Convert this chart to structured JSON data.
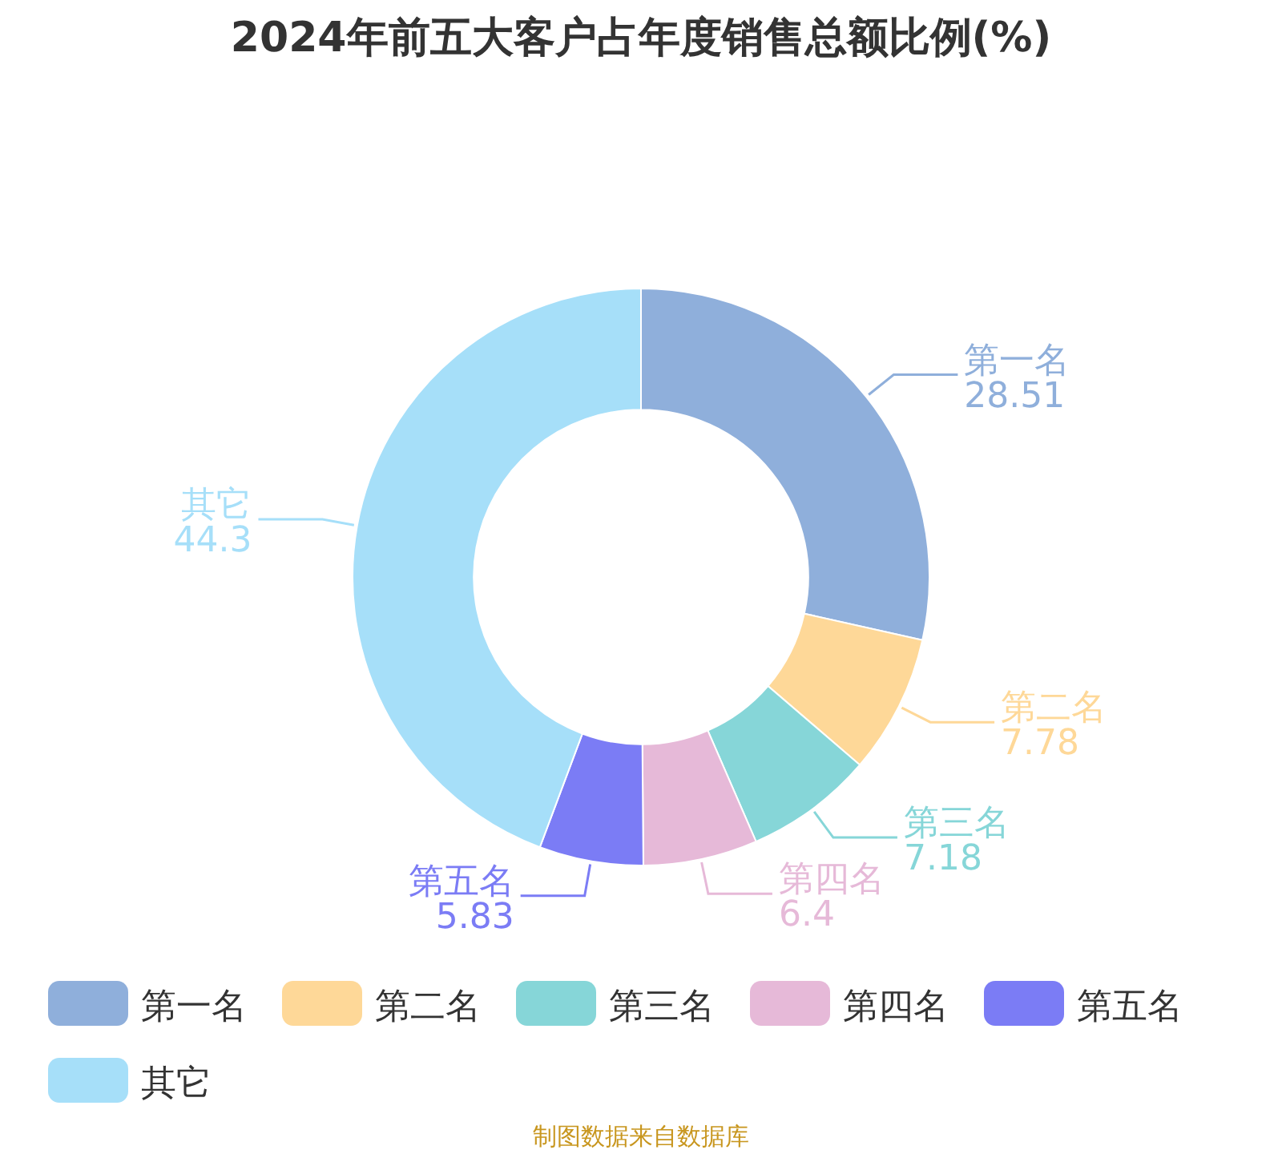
{
  "chart_data": {
    "type": "donut",
    "title": "2024年前五大客户占年度销售总额比例(%)",
    "categories": [
      "第一名",
      "第二名",
      "第三名",
      "第四名",
      "第五名",
      "其它"
    ],
    "values": [
      28.51,
      7.78,
      7.18,
      6.4,
      5.83,
      44.3
    ],
    "colors": [
      "#8fafdb",
      "#fed898",
      "#86d6d8",
      "#e6b9d8",
      "#7b7cf5",
      "#a6dff9"
    ],
    "data_labels": true,
    "legend": "bottom",
    "annotations": [
      "制图数据来自数据库"
    ]
  }
}
